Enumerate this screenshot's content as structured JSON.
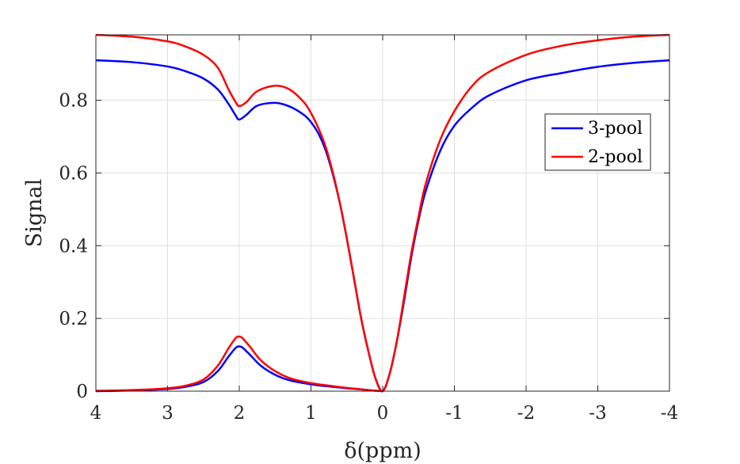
{
  "chart_data": {
    "type": "line",
    "xlabel": "δ(ppm)",
    "ylabel": "Signal",
    "xlim": [
      4,
      -4
    ],
    "ylim": [
      0,
      0.98
    ],
    "x_reversed": true,
    "grid": true,
    "legend_position": "right",
    "x_ticks": [
      4,
      3,
      2,
      1,
      0,
      -1,
      -2,
      -3,
      -4
    ],
    "x_tick_labels": [
      "4",
      "3",
      "2",
      "1",
      "0",
      "-1",
      "-2",
      "-3",
      "-4"
    ],
    "y_ticks": [
      0,
      0.2,
      0.4,
      0.6,
      0.8
    ],
    "y_tick_labels": [
      "0",
      "0.2",
      "0.4",
      "0.6",
      "0.8"
    ],
    "legend": [
      "3-pool",
      "2-pool"
    ],
    "series": [
      {
        "name": "3-pool",
        "color": "#0000ff",
        "curve": "upper",
        "x": [
          4,
          3.5,
          3,
          2.75,
          2.5,
          2.3,
          2.15,
          2.05,
          2,
          1.9,
          1.75,
          1.5,
          1.3,
          1.1,
          1,
          0.9,
          0.8,
          0.7,
          0.6,
          0.5,
          0.4,
          0.3,
          0.2,
          0.1,
          0,
          -0.1,
          -0.2,
          -0.3,
          -0.4,
          -0.5,
          -0.6,
          -0.8,
          -1,
          -1.25,
          -1.5,
          -2,
          -2.5,
          -3,
          -3.5,
          -4
        ],
        "y": [
          0.91,
          0.905,
          0.893,
          0.88,
          0.86,
          0.83,
          0.79,
          0.758,
          0.747,
          0.76,
          0.785,
          0.793,
          0.783,
          0.76,
          0.74,
          0.71,
          0.665,
          0.6,
          0.52,
          0.42,
          0.31,
          0.2,
          0.11,
          0.035,
          0.0,
          0.05,
          0.14,
          0.25,
          0.37,
          0.47,
          0.55,
          0.66,
          0.73,
          0.78,
          0.815,
          0.855,
          0.875,
          0.892,
          0.903,
          0.91
        ]
      },
      {
        "name": "3-pool",
        "color": "#0000ff",
        "curve": "lower",
        "x": [
          4,
          3.5,
          3,
          2.75,
          2.5,
          2.3,
          2.15,
          2.05,
          2,
          1.95,
          1.85,
          1.7,
          1.5,
          1.3,
          1.1,
          0.9,
          0.7,
          0.5,
          0.3,
          0.15,
          0
        ],
        "y": [
          0.0,
          0.002,
          0.006,
          0.012,
          0.025,
          0.055,
          0.095,
          0.119,
          0.123,
          0.119,
          0.1,
          0.07,
          0.045,
          0.03,
          0.022,
          0.016,
          0.012,
          0.008,
          0.005,
          0.002,
          0.0
        ]
      },
      {
        "name": "2-pool",
        "color": "#ff0000",
        "curve": "upper",
        "x": [
          4,
          3.5,
          3,
          2.75,
          2.5,
          2.3,
          2.15,
          2.05,
          2,
          1.9,
          1.75,
          1.5,
          1.3,
          1.1,
          1,
          0.9,
          0.8,
          0.7,
          0.6,
          0.5,
          0.4,
          0.3,
          0.2,
          0.1,
          0,
          -0.1,
          -0.2,
          -0.3,
          -0.4,
          -0.5,
          -0.6,
          -0.8,
          -1,
          -1.25,
          -1.5,
          -2,
          -2.5,
          -3,
          -3.5,
          -4
        ],
        "y": [
          0.98,
          0.975,
          0.962,
          0.948,
          0.925,
          0.89,
          0.83,
          0.795,
          0.784,
          0.795,
          0.825,
          0.84,
          0.83,
          0.795,
          0.765,
          0.725,
          0.675,
          0.605,
          0.52,
          0.42,
          0.31,
          0.2,
          0.11,
          0.035,
          0.0,
          0.05,
          0.14,
          0.26,
          0.38,
          0.48,
          0.57,
          0.69,
          0.77,
          0.84,
          0.88,
          0.925,
          0.95,
          0.965,
          0.975,
          0.98
        ]
      },
      {
        "name": "2-pool",
        "color": "#ff0000",
        "curve": "lower",
        "x": [
          4,
          3.5,
          3,
          2.75,
          2.5,
          2.3,
          2.15,
          2.05,
          2,
          1.95,
          1.85,
          1.7,
          1.5,
          1.3,
          1.1,
          0.9,
          0.7,
          0.5,
          0.3,
          0.15,
          0
        ],
        "y": [
          0.001,
          0.003,
          0.008,
          0.015,
          0.032,
          0.07,
          0.118,
          0.146,
          0.15,
          0.145,
          0.122,
          0.085,
          0.055,
          0.036,
          0.026,
          0.019,
          0.014,
          0.009,
          0.005,
          0.002,
          0.0
        ]
      }
    ]
  }
}
